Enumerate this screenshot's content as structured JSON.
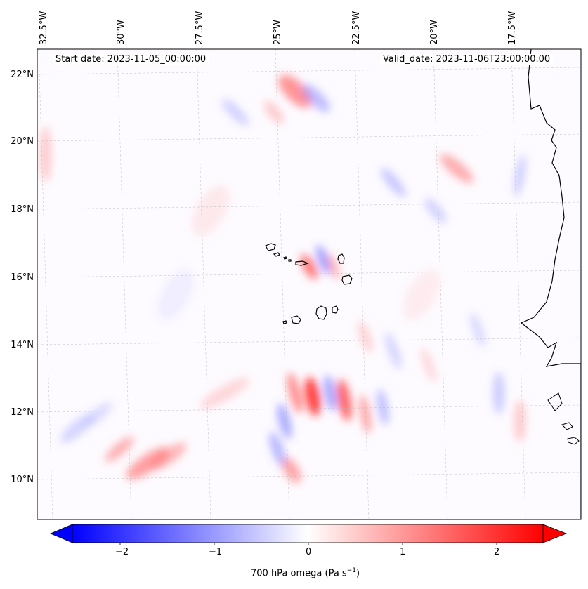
{
  "header": {
    "start_date": "Start date: 2023-11-05_00:00:00",
    "valid_date": "Valid_date: 2023-11-06T23:00:00.00"
  },
  "map": {
    "lon_labels": [
      "32.5°W",
      "30°W",
      "27.5°W",
      "25°W",
      "22.5°W",
      "20°W",
      "17.5°W"
    ],
    "lat_labels": [
      "22°N",
      "20°N",
      "18°N",
      "16°N",
      "14°N",
      "12°N",
      "10°N"
    ]
  },
  "colorbar": {
    "ticks": [
      "−2",
      "−1",
      "0",
      "1",
      "2"
    ],
    "label": "700 hPa omega (Pa s",
    "label_sup": "−1",
    "label_close": ")",
    "colors": {
      "negative": "#0000ff",
      "zero": "#ffffff",
      "positive": "#ff0000"
    }
  }
}
